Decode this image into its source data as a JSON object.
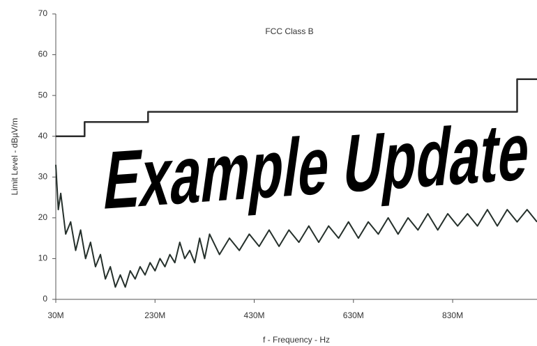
{
  "chart_data": {
    "type": "line",
    "title": "FCC Class B",
    "xlabel": "f - Frequency - Hz",
    "ylabel": "Limit Level - dBµV/m",
    "annotation": "Example Update",
    "xlim": [
      30,
      1000
    ],
    "ylim": [
      0,
      70
    ],
    "xticks": [
      {
        "value": 30,
        "label": "30M"
      },
      {
        "value": 230,
        "label": "230M"
      },
      {
        "value": 430,
        "label": "430M"
      },
      {
        "value": 630,
        "label": "630M"
      },
      {
        "value": 830,
        "label": "830M"
      }
    ],
    "yticks": [
      0,
      10,
      20,
      30,
      40,
      50,
      60,
      70
    ],
    "grid": false,
    "series": [
      {
        "color": "#2b2b2b",
        "step": true,
        "x": [
          30,
          88,
          88,
          216,
          216,
          960,
          960,
          1000
        ],
        "values": [
          40,
          40,
          43.5,
          43.5,
          46,
          46,
          54,
          54
        ]
      },
      {
        "color": "#25302b",
        "step": false,
        "x": [
          30,
          35,
          40,
          50,
          60,
          70,
          80,
          90,
          100,
          110,
          120,
          130,
          140,
          150,
          160,
          170,
          180,
          190,
          200,
          210,
          220,
          230,
          240,
          250,
          260,
          270,
          280,
          290,
          300,
          310,
          320,
          330,
          340,
          360,
          380,
          400,
          420,
          440,
          460,
          480,
          500,
          520,
          540,
          560,
          580,
          600,
          620,
          640,
          660,
          680,
          700,
          720,
          740,
          760,
          780,
          800,
          820,
          840,
          860,
          880,
          900,
          920,
          940,
          960,
          980,
          1000
        ],
        "values": [
          33,
          22,
          26,
          16,
          19,
          12,
          17,
          10,
          14,
          8,
          11,
          5,
          8,
          3,
          6,
          3,
          7,
          5,
          8,
          6,
          9,
          7,
          10,
          8,
          11,
          9,
          14,
          10,
          12,
          9,
          15,
          10,
          16,
          11,
          15,
          12,
          16,
          13,
          17,
          13,
          17,
          14,
          18,
          14,
          18,
          15,
          19,
          15,
          19,
          16,
          20,
          16,
          20,
          17,
          21,
          17,
          21,
          18,
          21,
          18,
          22,
          18,
          22,
          19,
          22,
          19
        ]
      }
    ]
  }
}
